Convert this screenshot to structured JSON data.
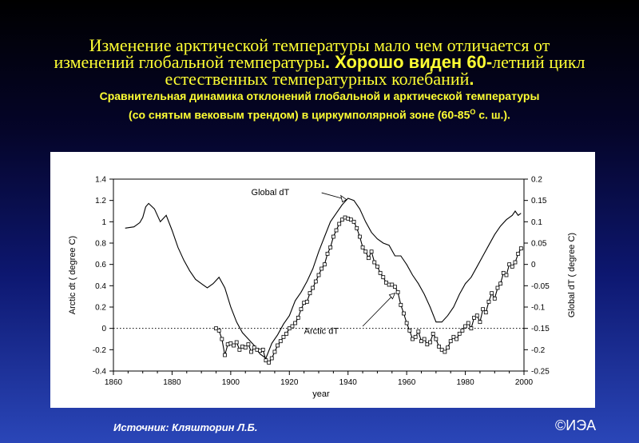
{
  "header": {
    "line1": "Изменение арктической температуры мало чем отличается от",
    "line2_a": "изменений глобальной температуры",
    "line2_b": ". Хорошо виден ",
    "line2_c": "60-",
    "line2_d": "летний цикл",
    "line3_a": "естественных температурных колебаний",
    "line3_b": ".",
    "sub1": "Сравнительная динамика отклонений глобальной и арктической температуры",
    "sub2_a": "(со снятым вековым трендом) в циркумполярной зоне (60-85",
    "sub2_sup": "O",
    "sub2_b": " с. ш.)."
  },
  "footer": {
    "source": "Источник: Кляшторин Л.Б.",
    "copyright": "©ИЭА"
  },
  "colors": {
    "title": "#ffff33",
    "line": "#000000",
    "chart_bg": "#ffffff"
  },
  "chart_data": {
    "type": "line",
    "xlabel": "year",
    "ylabel_left": "Arctic dt ( degree C)",
    "ylabel_right": "Global dT ( degree C)",
    "xlim": [
      1860,
      2000
    ],
    "ylim_left": [
      -0.4,
      1.4
    ],
    "ylim_right": [
      -0.25,
      0.2
    ],
    "x_ticks": [
      "1860",
      "1880",
      "1900",
      "1920",
      "1940",
      "1960",
      "1980",
      "2000"
    ],
    "y_left_ticks": [
      "-0.4",
      "-0.2",
      "0",
      "0.2",
      "0.4",
      "0.6",
      "0.8",
      "1",
      "1.2",
      "1.4"
    ],
    "y_right_ticks": [
      "-0.25",
      "-0.2",
      "-0.15",
      "-0.1",
      "-0.05",
      "0",
      "0.05",
      "0.1",
      "0.15",
      "0.2"
    ],
    "grid": false,
    "reference_line": {
      "axis": "left",
      "value": 0,
      "style": "dotted"
    },
    "annotations": [
      {
        "text": "Global dT",
        "at_year": 1940,
        "at_value": 0.152
      },
      {
        "text": "Arctic dT",
        "at_year": 1956,
        "at_value": 0.33
      }
    ],
    "series": [
      {
        "name": "Global dT",
        "axis": "right",
        "marker": "none",
        "x": [
          1864,
          1867,
          1869,
          1870,
          1871,
          1872,
          1874,
          1876,
          1878,
          1880,
          1882,
          1884,
          1886,
          1888,
          1890,
          1892,
          1894,
          1896,
          1898,
          1900,
          1902,
          1904,
          1906,
          1908,
          1910,
          1912,
          1914,
          1916,
          1918,
          1920,
          1922,
          1924,
          1926,
          1928,
          1930,
          1932,
          1934,
          1936,
          1938,
          1940,
          1942,
          1944,
          1946,
          1948,
          1950,
          1952,
          1954,
          1956,
          1958,
          1960,
          1962,
          1964,
          1966,
          1968,
          1970,
          1972,
          1974,
          1976,
          1978,
          1980,
          1982,
          1984,
          1986,
          1988,
          1990,
          1992,
          1994,
          1996,
          1997,
          1998,
          1999
        ],
        "y": [
          0.085,
          0.088,
          0.098,
          0.11,
          0.135,
          0.143,
          0.13,
          0.1,
          0.115,
          0.08,
          0.04,
          0.01,
          -0.015,
          -0.035,
          -0.045,
          -0.055,
          -0.045,
          -0.03,
          -0.055,
          -0.1,
          -0.135,
          -0.16,
          -0.175,
          -0.19,
          -0.21,
          -0.22,
          -0.185,
          -0.165,
          -0.14,
          -0.12,
          -0.085,
          -0.065,
          -0.04,
          -0.01,
          0.03,
          0.065,
          0.1,
          0.12,
          0.14,
          0.155,
          0.15,
          0.13,
          0.1,
          0.075,
          0.06,
          0.05,
          0.045,
          0.02,
          0.02,
          0.0,
          -0.025,
          -0.045,
          -0.07,
          -0.1,
          -0.135,
          -0.135,
          -0.12,
          -0.1,
          -0.07,
          -0.045,
          -0.03,
          -0.005,
          0.02,
          0.045,
          0.07,
          0.09,
          0.105,
          0.115,
          0.125,
          0.115,
          0.12
        ]
      },
      {
        "name": "Arctic dT",
        "axis": "left",
        "marker": "square",
        "x": [
          1895,
          1896,
          1897,
          1898,
          1899,
          1900,
          1901,
          1902,
          1903,
          1904,
          1905,
          1906,
          1907,
          1908,
          1909,
          1910,
          1911,
          1912,
          1913,
          1914,
          1915,
          1916,
          1917,
          1918,
          1919,
          1920,
          1921,
          1922,
          1923,
          1924,
          1925,
          1926,
          1927,
          1928,
          1929,
          1930,
          1931,
          1932,
          1933,
          1934,
          1935,
          1936,
          1937,
          1938,
          1939,
          1940,
          1941,
          1942,
          1943,
          1944,
          1945,
          1946,
          1947,
          1948,
          1949,
          1950,
          1951,
          1952,
          1953,
          1954,
          1955,
          1956,
          1957,
          1958,
          1959,
          1960,
          1961,
          1962,
          1963,
          1964,
          1965,
          1966,
          1967,
          1968,
          1969,
          1970,
          1971,
          1972,
          1973,
          1974,
          1975,
          1976,
          1977,
          1978,
          1979,
          1980,
          1981,
          1982,
          1983,
          1984,
          1985,
          1986,
          1987,
          1988,
          1989,
          1990,
          1991,
          1992,
          1993,
          1994,
          1995,
          1996,
          1997,
          1998,
          1999
        ],
        "y": [
          0.0,
          -0.02,
          -0.1,
          -0.25,
          -0.15,
          -0.14,
          -0.16,
          -0.13,
          -0.2,
          -0.17,
          -0.18,
          -0.15,
          -0.22,
          -0.18,
          -0.2,
          -0.21,
          -0.2,
          -0.3,
          -0.32,
          -0.28,
          -0.22,
          -0.16,
          -0.12,
          -0.08,
          -0.05,
          0.0,
          0.02,
          0.05,
          0.1,
          0.18,
          0.24,
          0.25,
          0.33,
          0.38,
          0.44,
          0.5,
          0.56,
          0.6,
          0.7,
          0.76,
          0.86,
          0.92,
          0.98,
          1.02,
          1.04,
          1.03,
          1.02,
          1.0,
          0.94,
          0.86,
          0.76,
          0.72,
          0.66,
          0.72,
          0.62,
          0.58,
          0.52,
          0.48,
          0.43,
          0.41,
          0.41,
          0.39,
          0.34,
          0.22,
          0.14,
          0.05,
          -0.02,
          -0.1,
          -0.08,
          -0.03,
          -0.12,
          -0.1,
          -0.15,
          -0.13,
          -0.05,
          -0.1,
          -0.17,
          -0.2,
          -0.22,
          -0.18,
          -0.12,
          -0.08,
          -0.1,
          -0.05,
          -0.02,
          0.02,
          0.05,
          0.0,
          0.1,
          0.12,
          0.06,
          0.18,
          0.15,
          0.25,
          0.33,
          0.28,
          0.38,
          0.42,
          0.52,
          0.5,
          0.6,
          0.58,
          0.62,
          0.7,
          0.75
        ]
      }
    ]
  }
}
